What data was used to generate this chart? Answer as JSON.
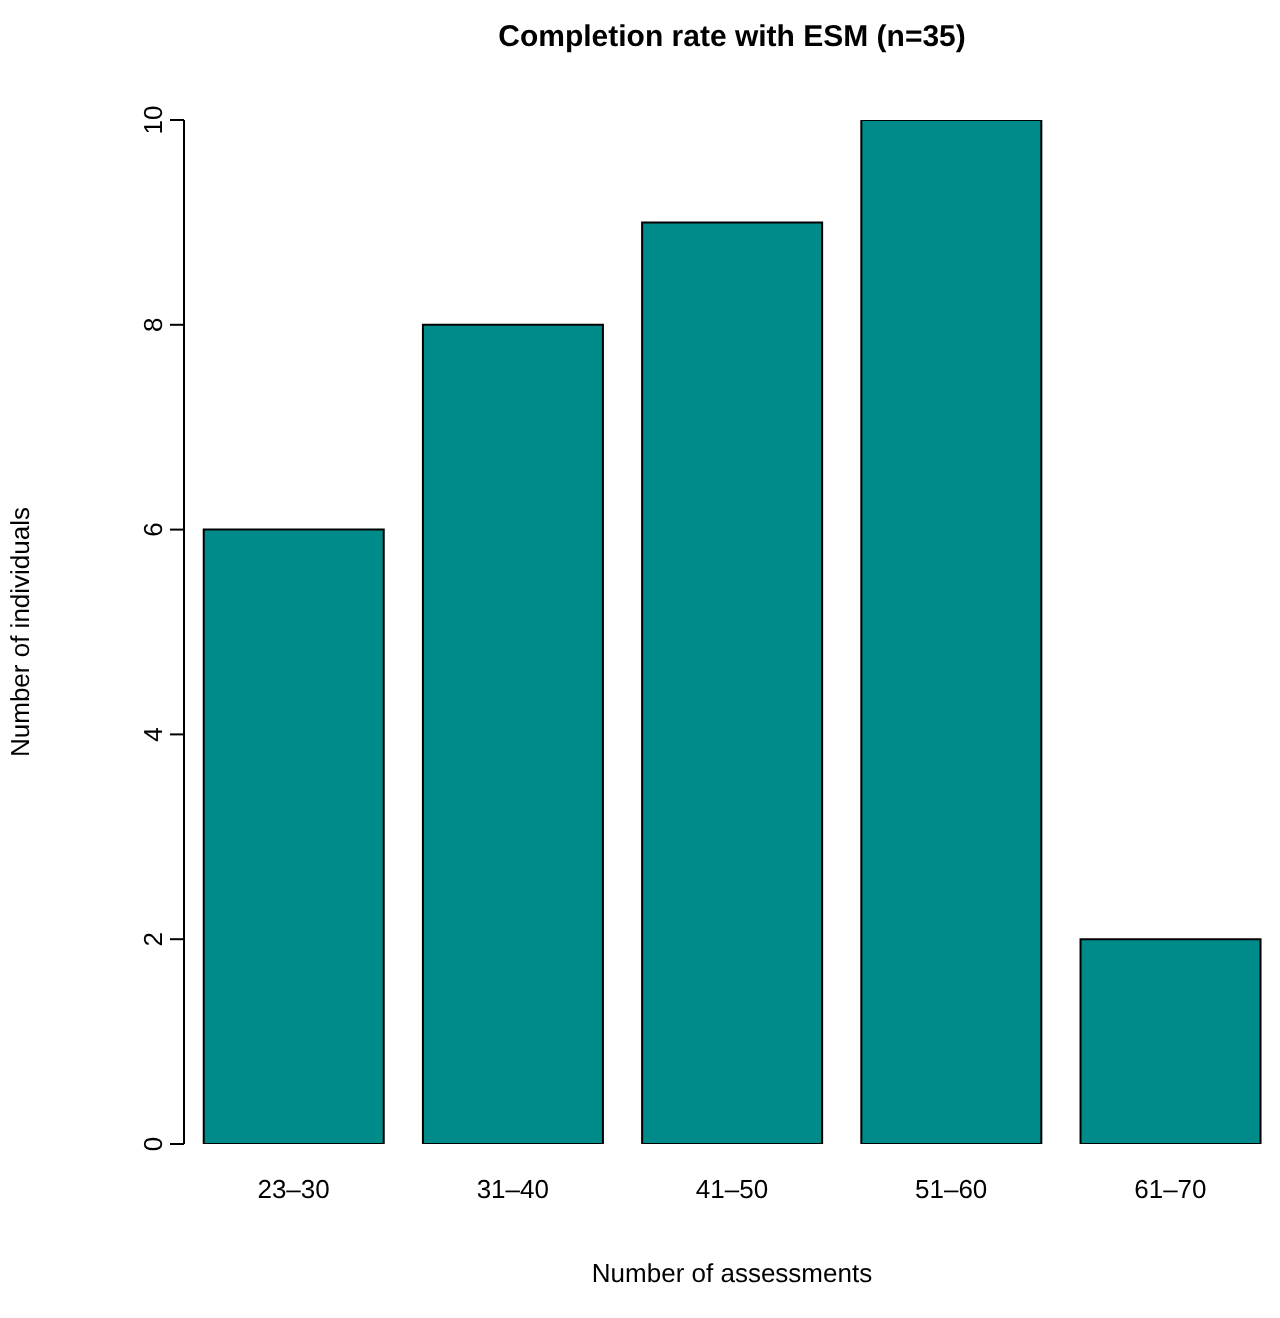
{
  "chart_data": {
    "type": "bar",
    "title": "Completion rate with ESM (n=35)",
    "xlabel": "Number of assessments",
    "ylabel": "Number of individuals",
    "categories": [
      "23–30",
      "31–40",
      "41–50",
      "51–60",
      "61–70"
    ],
    "values": [
      6,
      8,
      9,
      10,
      2
    ],
    "color": "#008b8b",
    "ylim": [
      0,
      10
    ],
    "yticks": [
      0,
      2,
      4,
      6,
      8,
      10
    ],
    "grid": false
  }
}
